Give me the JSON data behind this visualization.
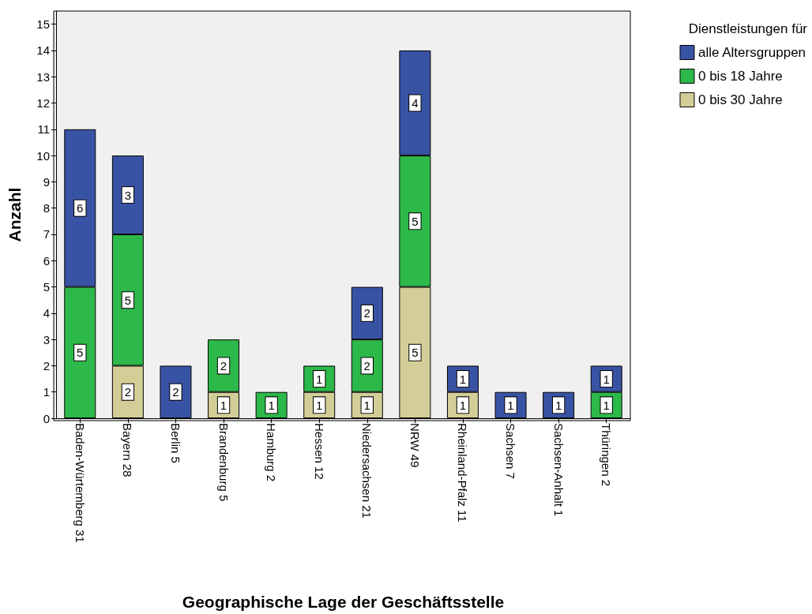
{
  "chart_data": {
    "type": "bar",
    "stacked": true,
    "xlabel": "Geographische Lage der Geschäftsstelle",
    "ylabel": "Anzahl",
    "legend_title": "Dienstleistungen für",
    "categories": [
      "Baden-Würtemberg 31",
      "Bayern 28",
      "Berlin 5",
      "Brandenburg 5",
      "Hamburg 2",
      "Hessen 12",
      "Niedersachsen 21",
      "NRW 49",
      "Rheinland-Pfalz 11",
      "Sachsen 7",
      "Sachsen-Anhalt 1",
      "Thüringen 2"
    ],
    "series": [
      {
        "name": "0 bis 30 Jahre",
        "color": "#d3ce97",
        "values": [
          null,
          2,
          null,
          1,
          null,
          1,
          1,
          5,
          1,
          null,
          null,
          null
        ]
      },
      {
        "name": "0 bis 18 Jahre",
        "color": "#2db84a",
        "values": [
          5,
          5,
          null,
          2,
          1,
          1,
          2,
          5,
          null,
          null,
          null,
          1
        ]
      },
      {
        "name": "alle Altersgruppen",
        "color": "#3953a4",
        "values": [
          6,
          3,
          2,
          null,
          null,
          null,
          2,
          4,
          1,
          1,
          1,
          1
        ]
      }
    ],
    "ylim": [
      0,
      15.5
    ],
    "yticks": [
      0,
      1,
      2,
      3,
      4,
      5,
      6,
      7,
      8,
      9,
      10,
      11,
      12,
      13,
      14,
      15
    ],
    "data_labels": true,
    "grid": false,
    "legend": "top right"
  }
}
